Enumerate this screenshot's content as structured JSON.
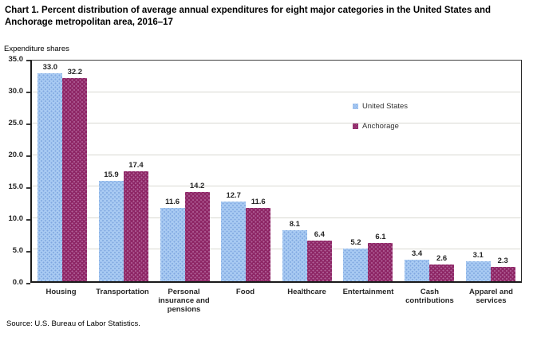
{
  "header": {
    "title": "Chart 1. Percent distribution of average annual expenditures for eight major categories in the United States and Anchorage metropolitan area, 2016–17"
  },
  "y_axis_unit_label": "Expenditure shares",
  "source": "Source: U.S. Bureau of Labor Statistics.",
  "colors": {
    "us_bar_fill": "#a8caf2",
    "us_bar_dot": "#7fa7e0",
    "anchorage_bar_fill": "#8e2766",
    "anchorage_bar_dot": "#b2649b",
    "gridline": "#d9d9d2",
    "axis_text": "#262626"
  },
  "chart_data": {
    "type": "bar",
    "title": "Chart 1. Percent distribution of average annual expenditures for eight major categories in the United States and Anchorage metropolitan area, 2016–17",
    "xlabel": "",
    "ylabel": "Expenditure shares",
    "ylim": [
      0,
      35
    ],
    "ytick_interval": 5,
    "ytick_labels": [
      "0.0",
      "5.0",
      "10.0",
      "15.0",
      "20.0",
      "25.0",
      "30.0",
      "35.0"
    ],
    "grid": true,
    "value_labels": true,
    "legend_position": "inside upper right",
    "categories": [
      "Housing",
      "Transportation",
      "Personal insurance and pensions",
      "Food",
      "Healthcare",
      "Entertainment",
      "Cash contributions",
      "Apparel and services"
    ],
    "category_label_lines": [
      [
        "Housing"
      ],
      [
        "Transportation"
      ],
      [
        "Personal",
        "insurance and",
        "pensions"
      ],
      [
        "Food"
      ],
      [
        "Healthcare"
      ],
      [
        "Entertainment"
      ],
      [
        "Cash",
        "contributions"
      ],
      [
        "Apparel and",
        "services"
      ]
    ],
    "series": [
      {
        "name": "United States",
        "values": [
          33.0,
          15.9,
          11.6,
          12.7,
          8.1,
          5.2,
          3.4,
          3.1
        ]
      },
      {
        "name": "Anchorage",
        "values": [
          32.2,
          17.4,
          14.2,
          11.6,
          6.4,
          6.1,
          2.6,
          2.3
        ]
      }
    ]
  }
}
